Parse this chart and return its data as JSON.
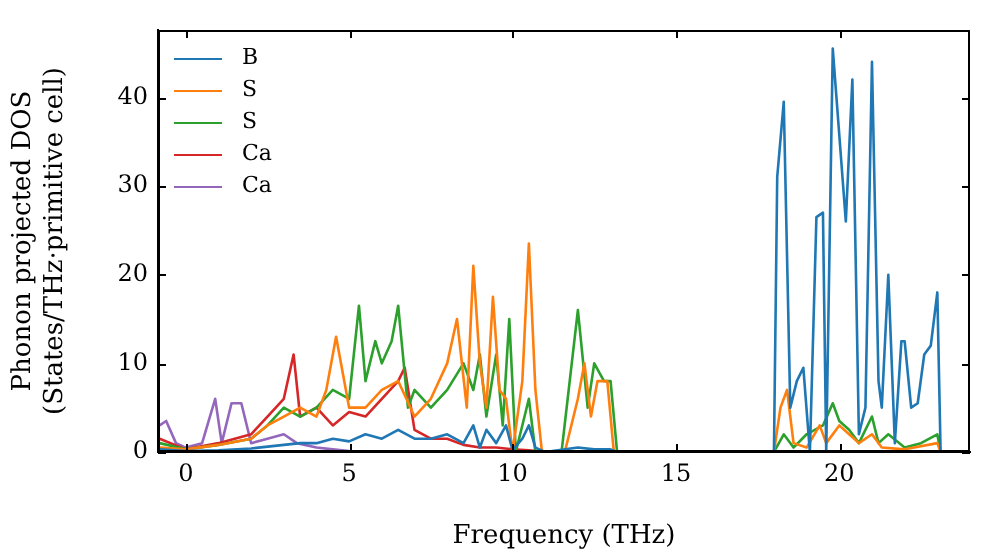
{
  "chart_data": {
    "type": "line",
    "xlabel": "Frequency (THz)",
    "ylabel": "Phonon projected DOS\n(States/THz·primitive cell)",
    "xlim": [
      -0.85,
      24
    ],
    "ylim": [
      0,
      47.6
    ],
    "xticks": [
      0,
      5,
      10,
      15,
      20
    ],
    "yticks": [
      0,
      10,
      20,
      30,
      40
    ],
    "grid": false,
    "legend": "top left",
    "marker": "none",
    "line_style": "solid",
    "series": [
      {
        "name": "B",
        "color": "#1f77b4",
        "x": [
          -0.8,
          0,
          1,
          2,
          3,
          3.5,
          4,
          4.5,
          5,
          5.5,
          6,
          6.5,
          7,
          7.5,
          8,
          8.5,
          8.8,
          9,
          9.2,
          9.5,
          9.8,
          10,
          10.3,
          10.5,
          10.7,
          11,
          12,
          12.5,
          13,
          13.2,
          18,
          18.1,
          18.3,
          18.5,
          18.7,
          18.9,
          19.1,
          19.3,
          19.5,
          19.6,
          19.8,
          20.2,
          20.4,
          20.6,
          20.8,
          21.0,
          21.2,
          21.3,
          21.5,
          21.7,
          21.9,
          22.0,
          22.2,
          22.4,
          22.6,
          22.8,
          23.0,
          23.1
        ],
        "values": [
          0.3,
          0.1,
          0.2,
          0.4,
          0.8,
          1,
          1,
          1.5,
          1.2,
          2,
          1.5,
          2.5,
          1.5,
          1.5,
          2,
          1,
          3,
          0.5,
          2.5,
          1,
          3,
          0.2,
          1.5,
          3,
          0.5,
          0,
          0.5,
          0.3,
          0.3,
          0,
          0,
          31,
          39.5,
          5,
          8,
          9.5,
          0,
          26.5,
          27,
          0,
          45.5,
          26,
          42,
          2,
          5,
          44,
          8,
          5,
          20,
          1,
          12.5,
          12.5,
          5,
          5.5,
          11,
          12,
          18,
          0
        ]
      },
      {
        "name": "S",
        "color": "#ff7f0e",
        "x": [
          -0.8,
          0,
          1,
          2,
          2.5,
          3,
          3.5,
          4,
          4.3,
          4.6,
          5,
          5.5,
          6,
          6.5,
          7,
          7.5,
          8,
          8.3,
          8.6,
          8.8,
          9,
          9.2,
          9.4,
          9.6,
          9.8,
          10,
          10.3,
          10.5,
          10.7,
          10.9,
          11.6,
          12,
          12.2,
          12.4,
          12.6,
          12.9,
          13.1,
          18,
          18.2,
          18.4,
          18.6,
          19,
          19.4,
          19.6,
          20,
          20.3,
          20.6,
          21,
          21.3,
          22,
          23,
          23.1
        ],
        "values": [
          0.5,
          0.3,
          0.8,
          1.5,
          3,
          4,
          5,
          4,
          7,
          13,
          5,
          5,
          7,
          8,
          4,
          6,
          10,
          15,
          5,
          21,
          10,
          5,
          17.5,
          7,
          6,
          0,
          8,
          23.5,
          7,
          0,
          0,
          6,
          10,
          4,
          8,
          8,
          0,
          0,
          5,
          7,
          1,
          0.5,
          3,
          1,
          3,
          2,
          1,
          2,
          0.5,
          0.3,
          1,
          0
        ]
      },
      {
        "name": "S",
        "color": "#2ca02c",
        "x": [
          -0.8,
          0,
          1,
          2,
          2.5,
          3,
          3.5,
          4,
          4.5,
          5,
          5.3,
          5.5,
          5.8,
          6,
          6.3,
          6.5,
          6.8,
          7,
          7.5,
          8,
          8.5,
          8.8,
          9,
          9.2,
          9.5,
          9.7,
          9.9,
          10.1,
          10.5,
          10.7,
          11.5,
          12,
          12.3,
          12.5,
          12.8,
          13,
          13.2,
          18,
          18.3,
          18.6,
          19,
          19.5,
          19.8,
          20,
          20.3,
          20.6,
          21,
          21.2,
          21.5,
          22,
          22.5,
          23,
          23.1
        ],
        "values": [
          1,
          0.3,
          0.8,
          1.5,
          3,
          5,
          4,
          5,
          7,
          6,
          16.5,
          8,
          12.5,
          10,
          12.5,
          16.5,
          5,
          7,
          5,
          7,
          10,
          7,
          11,
          4,
          11,
          3,
          15,
          0,
          6,
          0,
          0,
          16,
          5,
          10,
          8,
          8,
          0,
          0,
          2,
          0.5,
          2,
          3,
          5.5,
          3.5,
          2.5,
          1,
          4,
          1,
          2,
          0.5,
          1,
          2,
          0
        ]
      },
      {
        "name": "Ca",
        "color": "#d62728",
        "x": [
          -0.8,
          0,
          1,
          2,
          2.5,
          3,
          3.3,
          3.5,
          4,
          4.5,
          5,
          5.5,
          6,
          6.5,
          6.7,
          7,
          7.5,
          8,
          8.5,
          9,
          9.5,
          10,
          10.5,
          11
        ],
        "values": [
          1.5,
          0.3,
          1,
          2,
          4,
          6,
          11,
          4,
          5,
          3,
          4.5,
          4,
          6,
          8,
          9.5,
          2.5,
          1.5,
          1.5,
          0.8,
          0.5,
          0.5,
          0.3,
          0.2,
          0
        ]
      },
      {
        "name": "Ca",
        "color": "#9467bd",
        "x": [
          -0.8,
          -0.6,
          -0.3,
          0,
          0.5,
          0.9,
          1.1,
          1.4,
          1.7,
          2,
          2.5,
          3,
          3.4,
          4,
          4.5,
          5
        ],
        "values": [
          3,
          3.5,
          1,
          0.5,
          1,
          6,
          1,
          5.5,
          5.5,
          1,
          1.5,
          2,
          1,
          0.5,
          0.3,
          0.1
        ]
      }
    ]
  }
}
